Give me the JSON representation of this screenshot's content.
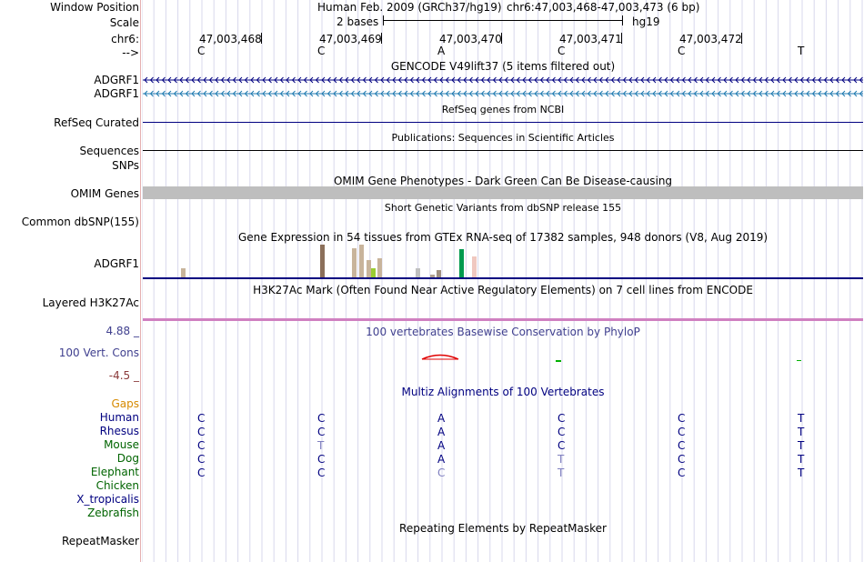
{
  "labels": {
    "window_position": "Window Position",
    "scale": "Scale",
    "chrom": "chr6:",
    "strand": "-->",
    "gencode_1": "ADGRF1",
    "gencode_2": "ADGRF1",
    "refseq": "RefSeq Curated",
    "sequences": "Sequences",
    "snps": "SNPs",
    "omim": "OMIM Genes",
    "dbsnp": "Common dbSNP(155)",
    "gtex": "ADGRF1",
    "h3k27ac": "Layered H3K27Ac",
    "cons_max": "4.88 _",
    "cons": "100 Vert. Cons",
    "cons_min": "-4.5 _",
    "gaps": "Gaps",
    "repeatmasker": "RepeatMasker"
  },
  "header": {
    "assembly": "Human Feb. 2009 (GRCh37/hg19)",
    "position": "chr6:47,003,468-47,003,473 (6 bp)",
    "scale_text": "2 bases",
    "scale_db": "hg19"
  },
  "ruler": {
    "positions": [
      "47,003,468",
      "47,003,469",
      "47,003,470",
      "47,003,471",
      "47,003,472"
    ],
    "bases": [
      "C",
      "C",
      "A",
      "C",
      "C",
      "T"
    ]
  },
  "tracks": {
    "gencode": "GENCODE V49lift37 (5 items filtered out)",
    "refseq": "RefSeq genes from NCBI",
    "publications": "Publications: Sequences in Scientific Articles",
    "omim": "OMIM Gene Phenotypes - Dark Green Can Be Disease-causing",
    "dbsnp": "Short Genetic Variants from dbSNP release 155",
    "gtex": "Gene Expression in 54 tissues from GTEx RNA-seq of 17382 samples, 948 donors (V8, Aug 2019)",
    "h3k27ac": "H3K27Ac Mark (Often Found Near Active Regulatory Elements) on 7 cell lines from ENCODE",
    "phylop": "100 vertebrates Basewise Conservation by PhyloP",
    "multiz": "Multiz Alignments of 100 Vertebrates",
    "repeatmasker": "Repeating Elements by RepeatMasker"
  },
  "gtex_levels": [
    {
      "color": "#c8b49b",
      "level": 0.3
    },
    {
      "color": "#5b9bd5",
      "level": 0.03
    },
    {
      "color": "#8b6f5a",
      "level": 1.0
    },
    {
      "color": "#c8b49b",
      "level": 0.9
    },
    {
      "color": "#c8b49b",
      "level": 1.0
    },
    {
      "color": "#c8b49b",
      "level": 0.55
    },
    {
      "color": "#9acd32",
      "level": 0.3
    },
    {
      "color": "#c8b49b",
      "level": 0.6
    },
    {
      "color": "#c0c0c0",
      "level": 0.3
    },
    {
      "color": "#b0a090",
      "level": 0.12
    },
    {
      "color": "#a09080",
      "level": 0.25
    },
    {
      "color": "#009a4e",
      "level": 0.87
    },
    {
      "color": "#f0c8c0",
      "level": 0.65
    }
  ],
  "species": [
    {
      "name": "Human",
      "color": "#000080",
      "bases": [
        "C",
        "C",
        "A",
        "C",
        "C",
        "T"
      ],
      "faded": [
        false,
        false,
        false,
        false,
        false,
        false
      ]
    },
    {
      "name": "Rhesus",
      "color": "#000080",
      "bases": [
        "C",
        "C",
        "A",
        "C",
        "C",
        "T"
      ],
      "faded": [
        false,
        false,
        false,
        false,
        false,
        false
      ]
    },
    {
      "name": "Mouse",
      "color": "#006400",
      "bases": [
        "C",
        "T",
        "A",
        "C",
        "C",
        "T"
      ],
      "faded": [
        false,
        true,
        false,
        false,
        false,
        false
      ]
    },
    {
      "name": "Dog",
      "color": "#006400",
      "bases": [
        "C",
        "C",
        "A",
        "T",
        "C",
        "T"
      ],
      "faded": [
        false,
        false,
        false,
        true,
        false,
        false
      ]
    },
    {
      "name": "Elephant",
      "color": "#006400",
      "bases": [
        "C",
        "C",
        "C",
        "T",
        "C",
        "T"
      ],
      "faded": [
        false,
        false,
        true,
        true,
        false,
        false
      ]
    },
    {
      "name": "Chicken",
      "color": "#006400",
      "bases": [],
      "faded": []
    },
    {
      "name": "X_tropicalis",
      "color": "#000080",
      "bases": [],
      "faded": []
    },
    {
      "name": "Zebrafish",
      "color": "#006400",
      "bases": [],
      "faded": []
    }
  ],
  "colors": {
    "gencode_1": "#000080",
    "gencode_2": "#1f7ab0",
    "omim": "#006400",
    "cons": "#40408f",
    "cons_min": "#8b3a3a",
    "gaps": "#d68a00",
    "base_faded": "#8080c0"
  }
}
